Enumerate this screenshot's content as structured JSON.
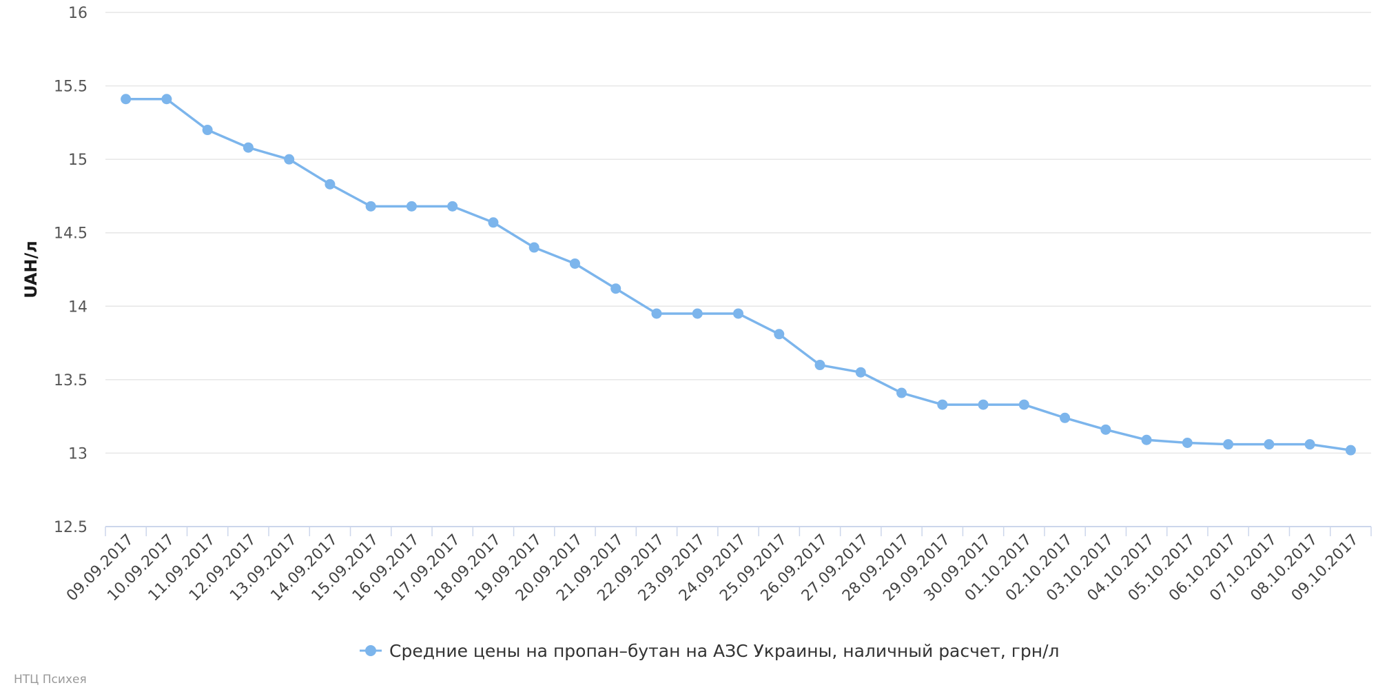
{
  "colors": {
    "series": "#7cb5ec",
    "grid": "#e6e6e6",
    "axis": "#ccd6eb",
    "background": "#ffffff"
  },
  "chart_data": {
    "type": "line",
    "title": "",
    "xlabel": "",
    "ylabel": "UAH/л",
    "ylim": [
      12.5,
      16
    ],
    "yticks": [
      "12.5",
      "13",
      "13.5",
      "14",
      "14.5",
      "15",
      "15.5",
      "16"
    ],
    "grid": true,
    "legend_position": "bottom-center",
    "categories": [
      "09.09.2017",
      "10.09.2017",
      "11.09.2017",
      "12.09.2017",
      "13.09.2017",
      "14.09.2017",
      "15.09.2017",
      "16.09.2017",
      "17.09.2017",
      "18.09.2017",
      "19.09.2017",
      "20.09.2017",
      "21.09.2017",
      "22.09.2017",
      "23.09.2017",
      "24.09.2017",
      "25.09.2017",
      "26.09.2017",
      "27.09.2017",
      "28.09.2017",
      "29.09.2017",
      "30.09.2017",
      "01.10.2017",
      "02.10.2017",
      "03.10.2017",
      "04.10.2017",
      "05.10.2017",
      "06.10.2017",
      "07.10.2017",
      "08.10.2017",
      "09.10.2017"
    ],
    "series": [
      {
        "name": "Средние цены на пропан–бутан на АЗС Украины, наличный расчет, грн/л",
        "values": [
          15.41,
          15.41,
          15.2,
          15.08,
          15.0,
          14.83,
          14.68,
          14.68,
          14.68,
          14.57,
          14.4,
          14.29,
          14.12,
          13.95,
          13.95,
          13.95,
          13.81,
          13.6,
          13.55,
          13.41,
          13.33,
          13.33,
          13.33,
          13.24,
          13.16,
          13.09,
          13.07,
          13.06,
          13.06,
          13.06,
          13.02
        ]
      }
    ]
  },
  "credits": "НТЦ Психея"
}
